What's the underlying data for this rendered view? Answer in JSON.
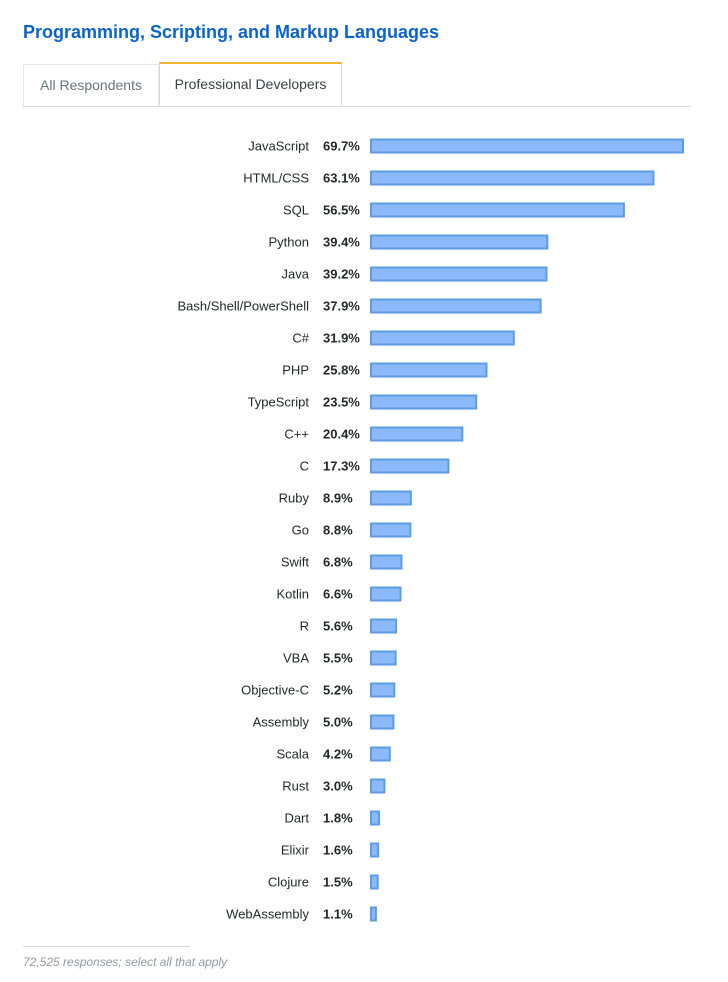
{
  "title": "Programming, Scripting, and Markup Languages",
  "tabs": [
    {
      "label": "All Respondents",
      "active": false
    },
    {
      "label": "Professional Developers",
      "active": true
    }
  ],
  "colors": {
    "title": "#0a63c7",
    "bar_fill": "#8bb9fa",
    "bar_stroke": "#5e9be5",
    "tab_accent": "#f2b530"
  },
  "chart_data": {
    "type": "bar",
    "orientation": "horizontal",
    "categories": [
      "JavaScript",
      "HTML/CSS",
      "SQL",
      "Python",
      "Java",
      "Bash/Shell/PowerShell",
      "C#",
      "PHP",
      "TypeScript",
      "C++",
      "C",
      "Ruby",
      "Go",
      "Swift",
      "Kotlin",
      "R",
      "VBA",
      "Objective-C",
      "Assembly",
      "Scala",
      "Rust",
      "Dart",
      "Elixir",
      "Clojure",
      "WebAssembly"
    ],
    "values": [
      69.7,
      63.1,
      56.5,
      39.4,
      39.2,
      37.9,
      31.9,
      25.8,
      23.5,
      20.4,
      17.3,
      8.9,
      8.8,
      6.8,
      6.6,
      5.6,
      5.5,
      5.2,
      5.0,
      4.2,
      3.0,
      1.8,
      1.6,
      1.5,
      1.1
    ],
    "value_labels": [
      "69.7%",
      "63.1%",
      "56.5%",
      "39.4%",
      "39.2%",
      "37.9%",
      "31.9%",
      "25.8%",
      "23.5%",
      "20.4%",
      "17.3%",
      "8.9%",
      "8.8%",
      "6.8%",
      "6.6%",
      "5.6%",
      "5.5%",
      "5.2%",
      "5.0%",
      "4.2%",
      "3.0%",
      "1.8%",
      "1.6%",
      "1.5%",
      "1.1%"
    ],
    "unit": "%",
    "xlim": [
      0,
      69.7
    ],
    "grid": false,
    "legend": "none"
  },
  "footnote": "72,525 responses; select all that apply"
}
